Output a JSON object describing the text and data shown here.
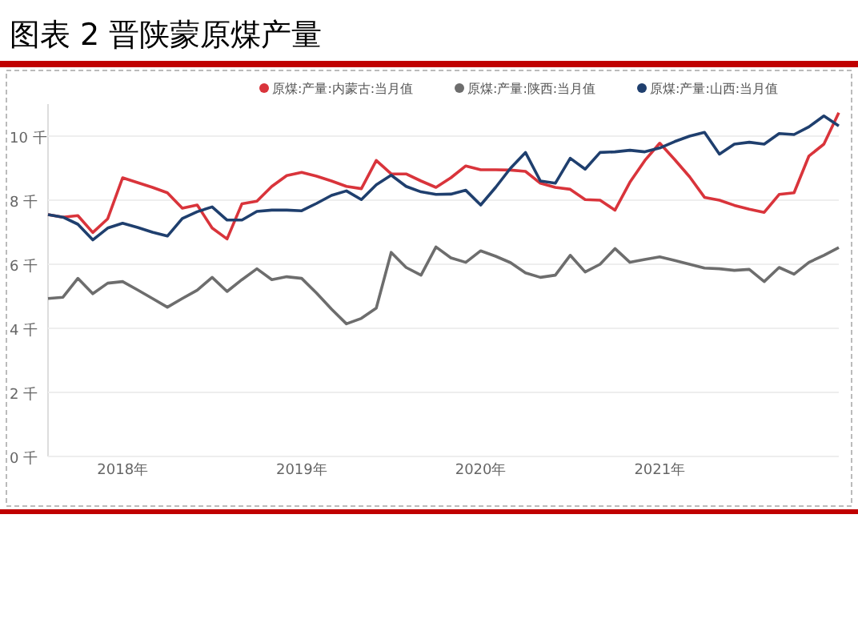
{
  "chart_data": {
    "type": "line",
    "title": "图表 2 晋陕蒙原煤产量",
    "x": [
      "2017-08",
      "2017-09",
      "2017-10",
      "2017-11",
      "2017-12",
      "2018-01",
      "2018-02",
      "2018-03",
      "2018-04",
      "2018-05",
      "2018-06",
      "2018-07",
      "2018-08",
      "2018-09",
      "2018-10",
      "2018-11",
      "2018-12",
      "2019-01",
      "2019-02",
      "2019-03",
      "2019-04",
      "2019-05",
      "2019-06",
      "2019-07",
      "2019-08",
      "2019-09",
      "2019-10",
      "2019-11",
      "2019-12",
      "2020-01",
      "2020-02",
      "2020-03",
      "2020-04",
      "2020-05",
      "2020-06",
      "2020-07",
      "2020-08",
      "2020-09",
      "2020-10",
      "2020-11",
      "2020-12",
      "2021-01",
      "2021-02",
      "2021-03",
      "2021-04",
      "2021-05",
      "2021-06",
      "2021-07",
      "2021-08",
      "2021-09",
      "2021-10",
      "2021-11",
      "2021-12",
      "2022-01"
    ],
    "series": [
      {
        "name": "原煤:产量:内蒙古:当月值",
        "color": "#d9343b",
        "values": [
          7.55,
          7.47,
          7.52,
          6.99,
          7.42,
          8.7,
          8.55,
          8.4,
          8.23,
          7.75,
          7.85,
          7.13,
          6.79,
          7.89,
          7.97,
          8.43,
          8.77,
          8.87,
          8.75,
          8.6,
          8.43,
          8.36,
          9.24,
          8.82,
          8.82,
          8.6,
          8.4,
          8.7,
          9.07,
          8.95,
          8.95,
          8.94,
          8.9,
          8.53,
          8.4,
          8.34,
          8.02,
          8.0,
          7.69,
          8.56,
          9.24,
          9.78,
          9.27,
          8.73,
          8.09,
          8.0,
          7.84,
          7.72,
          7.62,
          8.18,
          8.23,
          9.38,
          9.75,
          10.73
        ]
      },
      {
        "name": "原煤:产量:陕西:当月值",
        "color": "#6d6d6d",
        "values": [
          4.93,
          4.97,
          5.56,
          5.08,
          5.41,
          5.46,
          5.2,
          4.93,
          4.66,
          4.93,
          5.19,
          5.59,
          5.15,
          5.52,
          5.86,
          5.52,
          5.61,
          5.56,
          5.1,
          4.6,
          4.14,
          4.31,
          4.63,
          6.37,
          5.9,
          5.66,
          6.54,
          6.2,
          6.06,
          6.42,
          6.25,
          6.05,
          5.73,
          5.59,
          5.66,
          6.28,
          5.76,
          6.0,
          6.49,
          6.06,
          6.15,
          6.23,
          6.12,
          6.0,
          5.88,
          5.86,
          5.81,
          5.84,
          5.46,
          5.9,
          5.69,
          6.06,
          6.28,
          6.52
        ]
      },
      {
        "name": "原煤:产量:山西:当月值",
        "color": "#1f3f6e",
        "values": [
          7.55,
          7.47,
          7.25,
          6.76,
          7.13,
          7.28,
          7.15,
          7.0,
          6.88,
          7.43,
          7.64,
          7.79,
          7.38,
          7.38,
          7.65,
          7.69,
          7.69,
          7.67,
          7.9,
          8.15,
          8.29,
          8.02,
          8.48,
          8.78,
          8.43,
          8.26,
          8.18,
          8.19,
          8.31,
          7.85,
          8.4,
          9.0,
          9.49,
          8.6,
          8.53,
          9.31,
          8.97,
          9.49,
          9.51,
          9.56,
          9.51,
          9.63,
          9.83,
          10.0,
          10.12,
          9.44,
          9.75,
          9.81,
          9.75,
          10.08,
          10.05,
          10.29,
          10.63,
          10.32
        ]
      }
    ],
    "xlim": [
      "2017-08",
      "2022-01"
    ],
    "xticks": [
      {
        "value": "2018-01",
        "label": "2018年"
      },
      {
        "value": "2019-01",
        "label": "2019年"
      },
      {
        "value": "2020-01",
        "label": "2020年"
      },
      {
        "value": "2021-01",
        "label": "2021年"
      }
    ],
    "ylim": [
      0,
      11
    ],
    "yticks": [
      {
        "value": 0,
        "label": "0 千"
      },
      {
        "value": 2,
        "label": "2 千"
      },
      {
        "value": 4,
        "label": "4 千"
      },
      {
        "value": 6,
        "label": "6 千"
      },
      {
        "value": 8,
        "label": "8 千"
      },
      {
        "value": 10,
        "label": "10 千"
      }
    ],
    "grid": "y",
    "legend": "top",
    "marker": "none",
    "line_style": "solid"
  }
}
